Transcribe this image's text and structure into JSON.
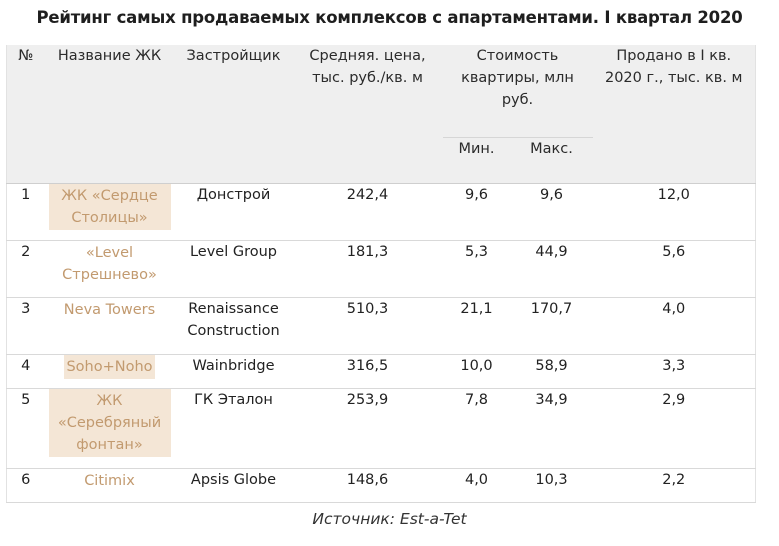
{
  "title": "Рейтинг самых продаваемых комплексов с апартаментами. I квартал 2020",
  "headers": {
    "num": "№",
    "name": "Название ЖК",
    "developer": "Застройщик",
    "avg_price": "Средняя. цена, тыс. руб./кв. м",
    "cost": "Стоимость квартиры, млн руб.",
    "min": "Мин.",
    "max": "Макс.",
    "sold": "Продано в I кв. 2020 г., тыс. кв. м"
  },
  "rows": [
    {
      "num": "1",
      "name": "ЖК «Сердце Столицы»",
      "highlight": true,
      "developer": "Донстрой",
      "avg_price": "242,4",
      "min": "9,6",
      "max": "9,6",
      "sold": "12,0"
    },
    {
      "num": "2",
      "name": "«Level Стрешнево»",
      "highlight": false,
      "developer": "Level Group",
      "avg_price": "181,3",
      "min": "5,3",
      "max": "44,9",
      "sold": "5,6"
    },
    {
      "num": "3",
      "name": "Neva Towers",
      "highlight": false,
      "developer": "Renaissance Construction",
      "avg_price": "510,3",
      "min": "21,1",
      "max": "170,7",
      "sold": "4,0"
    },
    {
      "num": "4",
      "name": "Soho+Noho",
      "highlight": true,
      "developer": "Wainbridge",
      "avg_price": "316,5",
      "min": "10,0",
      "max": "58,9",
      "sold": "3,3"
    },
    {
      "num": "5",
      "name": "ЖК «Серебряный фонтан»",
      "highlight": true,
      "developer": "ГК Эталон",
      "avg_price": "253,9",
      "min": "7,8",
      "max": "34,9",
      "sold": "2,9"
    },
    {
      "num": "6",
      "name": "Citimix",
      "highlight": false,
      "developer": "Apsis Globe",
      "avg_price": "148,6",
      "min": "4,0",
      "max": "10,3",
      "sold": "2,2"
    }
  ],
  "source": "Источник: Est-a-Tet",
  "colors": {
    "link": "#c29a6f",
    "highlight": "#f4e6d6",
    "header_bg": "#efefef"
  }
}
